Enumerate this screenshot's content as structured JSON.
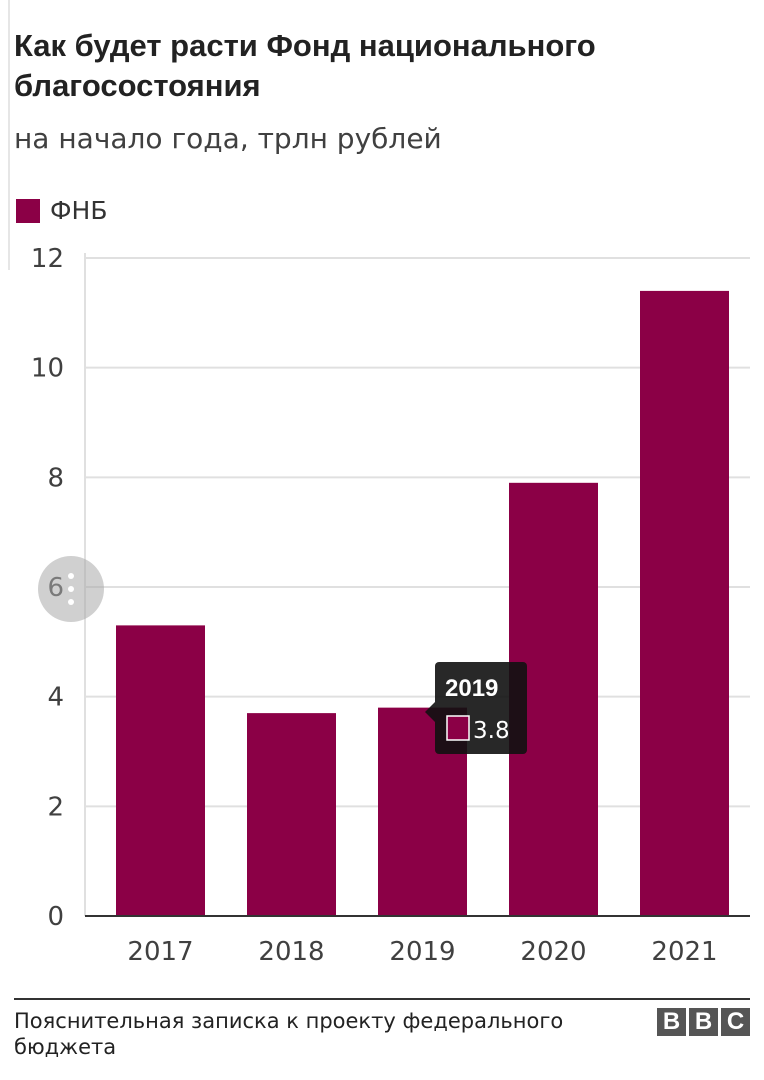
{
  "header": {
    "title": "Как будет расти Фонд национального благосостояния",
    "subtitle": "на начало года, трлн рублей"
  },
  "legend": {
    "label": "ФНБ"
  },
  "colors": {
    "bar": "#8b0046",
    "grid": "#e0e0e0",
    "axis": "#333333",
    "tooltip_bg": "#111111"
  },
  "chart_data": {
    "type": "bar",
    "categories": [
      "2017",
      "2018",
      "2019",
      "2020",
      "2021"
    ],
    "series": [
      {
        "name": "ФНБ",
        "values": [
          5.3,
          3.7,
          3.8,
          7.9,
          11.4
        ]
      }
    ],
    "ylim": [
      0,
      12
    ],
    "yticks": [
      0,
      2,
      4,
      6,
      8,
      10,
      12
    ],
    "grid": true,
    "legend_position": "top-left",
    "tooltip": {
      "category": "2019",
      "value": "3.8"
    }
  },
  "footer": {
    "source": "Пояснительная записка к проекту федерального бюджета",
    "logo": [
      "B",
      "B",
      "C"
    ]
  }
}
